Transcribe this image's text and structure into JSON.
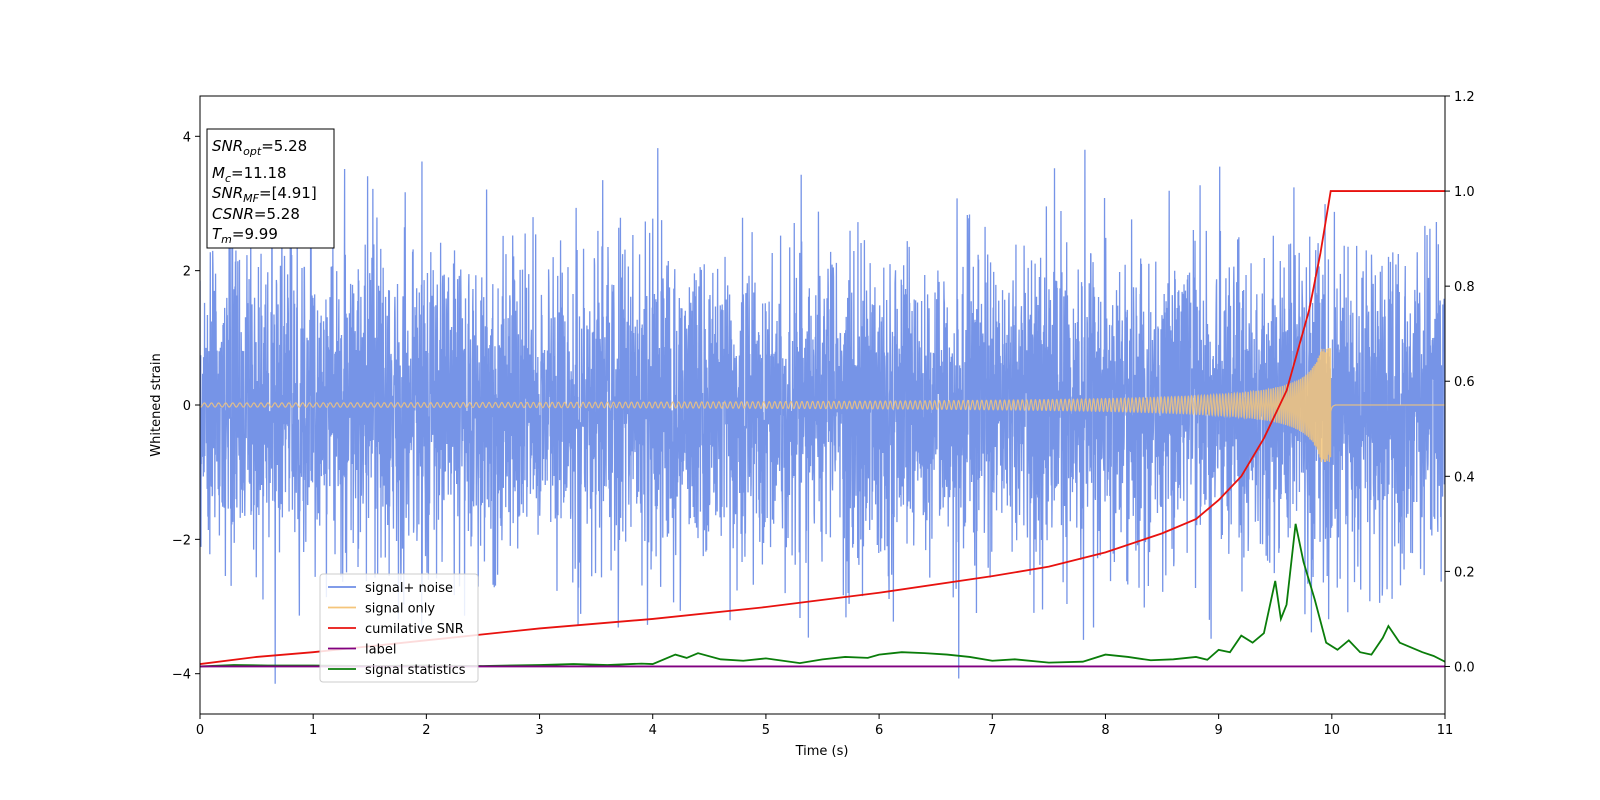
{
  "chart_data": {
    "type": "line",
    "title": "",
    "xlabel": "Time (s)",
    "ylabel": "Whitened strain",
    "ylabel_right": "",
    "xlim": [
      0,
      11
    ],
    "ylim": [
      -4.6,
      4.6
    ],
    "ylim_right": [
      -0.1,
      1.2
    ],
    "x_ticks": [
      0,
      1,
      2,
      3,
      4,
      5,
      6,
      7,
      8,
      9,
      10,
      11
    ],
    "y_ticks": [
      -4,
      -2,
      0,
      2,
      4
    ],
    "y_ticks_right": [
      0.0,
      0.2,
      0.4,
      0.6,
      0.8,
      1.0,
      1.2
    ],
    "y_tick_labels_right": [
      "0.0",
      "0.2",
      "0.4",
      "0.6",
      "0.8",
      "1.0",
      "1.2"
    ],
    "grid": false,
    "legend_position": "lower-left",
    "series": [
      {
        "name": "signal+ noise",
        "color": "#6f8ee6",
        "axis": "left",
        "noise_std": 1.15,
        "peak_max": 4.15,
        "peak_min": -4.15
      },
      {
        "name": "signal only",
        "color": "#f5c57a",
        "axis": "left",
        "merger_time": 9.99,
        "peak_amplitude": 0.85,
        "early_amplitude": 0.03
      },
      {
        "name": "cumilative SNR",
        "color": "#e8120f",
        "axis": "right",
        "x": [
          0,
          0.5,
          1,
          2,
          3,
          4,
          5,
          6,
          7,
          7.5,
          8,
          8.5,
          8.8,
          9,
          9.2,
          9.4,
          9.6,
          9.8,
          9.9,
          9.99,
          10,
          11
        ],
        "values": [
          0.005,
          0.02,
          0.03,
          0.055,
          0.08,
          0.1,
          0.125,
          0.155,
          0.19,
          0.21,
          0.24,
          0.28,
          0.31,
          0.35,
          0.4,
          0.48,
          0.58,
          0.75,
          0.87,
          1.0,
          1.0,
          1.0
        ]
      },
      {
        "name": "label",
        "color": "#800080",
        "axis": "right",
        "x": [
          0,
          11
        ],
        "values": [
          0,
          0
        ]
      },
      {
        "name": "signal statistics",
        "color": "#0a7d0a",
        "axis": "right",
        "x": [
          0,
          0.3,
          0.6,
          1.0,
          1.5,
          2.0,
          2.5,
          3.0,
          3.3,
          3.6,
          3.9,
          4.0,
          4.2,
          4.3,
          4.4,
          4.6,
          4.8,
          5.0,
          5.3,
          5.5,
          5.7,
          5.9,
          6.0,
          6.2,
          6.4,
          6.6,
          6.8,
          7.0,
          7.2,
          7.5,
          7.8,
          8.0,
          8.2,
          8.4,
          8.6,
          8.8,
          8.9,
          9.0,
          9.1,
          9.2,
          9.3,
          9.4,
          9.5,
          9.55,
          9.6,
          9.68,
          9.75,
          9.85,
          9.95,
          10.05,
          10.15,
          10.25,
          10.35,
          10.45,
          10.5,
          10.6,
          10.7,
          10.8,
          10.9,
          11.0
        ],
        "values": [
          0.0,
          0.003,
          0.002,
          0.002,
          0.001,
          0.002,
          0.001,
          0.003,
          0.005,
          0.003,
          0.006,
          0.005,
          0.025,
          0.018,
          0.028,
          0.015,
          0.012,
          0.017,
          0.007,
          0.015,
          0.02,
          0.018,
          0.025,
          0.03,
          0.028,
          0.025,
          0.02,
          0.012,
          0.015,
          0.008,
          0.01,
          0.025,
          0.02,
          0.013,
          0.015,
          0.02,
          0.014,
          0.035,
          0.03,
          0.065,
          0.05,
          0.07,
          0.18,
          0.1,
          0.13,
          0.3,
          0.22,
          0.14,
          0.05,
          0.035,
          0.055,
          0.03,
          0.025,
          0.06,
          0.085,
          0.05,
          0.04,
          0.03,
          0.022,
          0.01
        ]
      }
    ]
  },
  "info_box": {
    "snr_opt_label": "SNR",
    "snr_opt_sub": "opt",
    "snr_opt_value": "=5.28",
    "mc_label": "M",
    "mc_sub": "c",
    "mc_value": "=11.18",
    "snr_mf_label": "SNR",
    "snr_mf_sub": "MF",
    "snr_mf_value": "=[4.91]",
    "csnr_label": "CSNR",
    "csnr_value": "=5.28",
    "tm_label": "T",
    "tm_sub": "m",
    "tm_value": "=9.99"
  }
}
